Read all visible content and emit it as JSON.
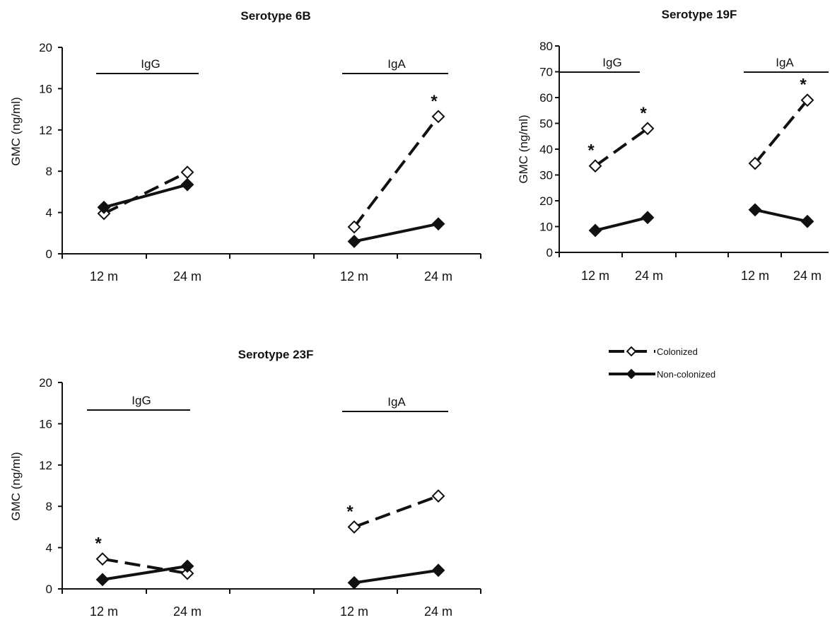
{
  "chart_data": [
    {
      "type": "line",
      "title": "Serotype 6B",
      "ylabel": "GMC (ng/ml)",
      "ylim": [
        0,
        20
      ],
      "yticks": [
        "0",
        "4",
        "8",
        "12",
        "16",
        "20"
      ],
      "groups": [
        {
          "label": "IgG",
          "x": [
            "12 m",
            "24 m"
          ],
          "series": [
            {
              "name": "Colonized",
              "values": [
                3.9,
                7.9
              ],
              "stars": [
                false,
                false
              ]
            },
            {
              "name": "Non-colonized",
              "values": [
                4.5,
                6.7
              ],
              "stars": [
                false,
                false
              ]
            }
          ]
        },
        {
          "label": "IgA",
          "x": [
            "12 m",
            "24 m"
          ],
          "series": [
            {
              "name": "Colonized",
              "values": [
                2.6,
                13.3
              ],
              "stars": [
                false,
                true
              ]
            },
            {
              "name": "Non-colonized",
              "values": [
                1.2,
                2.9
              ],
              "stars": [
                false,
                false
              ]
            }
          ]
        }
      ],
      "star_symbol": "*"
    },
    {
      "type": "line",
      "title": "Serotype 19F",
      "ylabel": "GMC (ng/ml)",
      "ylim": [
        0,
        80
      ],
      "yticks": [
        "0",
        "10",
        "20",
        "30",
        "40",
        "50",
        "60",
        "70",
        "80"
      ],
      "groups": [
        {
          "label": "IgG",
          "x": [
            "12 m",
            "24 m"
          ],
          "series": [
            {
              "name": "Colonized",
              "values": [
                33.5,
                48
              ],
              "stars": [
                true,
                true
              ]
            },
            {
              "name": "Non-colonized",
              "values": [
                8.5,
                13.5
              ],
              "stars": [
                false,
                false
              ]
            }
          ]
        },
        {
          "label": "IgA",
          "x": [
            "12 m",
            "24 m"
          ],
          "series": [
            {
              "name": "Colonized",
              "values": [
                34.5,
                59
              ],
              "stars": [
                false,
                true
              ]
            },
            {
              "name": "Non-colonized",
              "values": [
                16.5,
                12
              ],
              "stars": [
                false,
                false
              ]
            }
          ]
        }
      ],
      "star_symbol": "*"
    },
    {
      "type": "line",
      "title": "Serotype 23F",
      "ylabel": "GMC (ng/ml)",
      "ylim": [
        0,
        20
      ],
      "yticks": [
        "0",
        "4",
        "8",
        "12",
        "16",
        "20"
      ],
      "groups": [
        {
          "label": "IgG",
          "x": [
            "12 m",
            "24 m"
          ],
          "series": [
            {
              "name": "Colonized",
              "values": [
                2.9,
                1.5
              ],
              "stars": [
                true,
                false
              ]
            },
            {
              "name": "Non-colonized",
              "values": [
                0.9,
                2.2
              ],
              "stars": [
                false,
                false
              ]
            }
          ]
        },
        {
          "label": "IgA",
          "x": [
            "12 m",
            "24 m"
          ],
          "series": [
            {
              "name": "Colonized",
              "values": [
                6.0,
                9.0
              ],
              "stars": [
                true,
                false
              ]
            },
            {
              "name": "Non-colonized",
              "values": [
                0.6,
                1.8
              ],
              "stars": [
                false,
                false
              ]
            }
          ]
        }
      ],
      "star_symbol": "*"
    }
  ],
  "legend": {
    "items": [
      {
        "name": "Colonized",
        "marker": "open-diamond",
        "line": "dashed"
      },
      {
        "name": "Non-colonized",
        "marker": "filled-diamond",
        "line": "solid"
      }
    ]
  },
  "colors": {
    "ink": "#111111",
    "background": "#ffffff"
  }
}
